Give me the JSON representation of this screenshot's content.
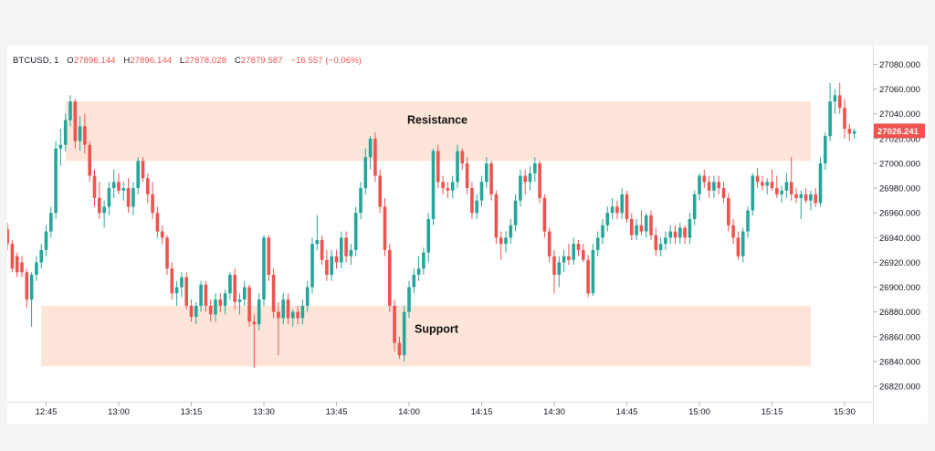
{
  "legend": {
    "symbol": "BTCUSD, 1",
    "open_label": "O",
    "open": "27896.144",
    "high_label": "H",
    "high": "27896.144",
    "low_label": "L",
    "low": "27878.028",
    "close_label": "C",
    "close": "27879.587",
    "change": "−16.557 (−0.06%)"
  },
  "colors": {
    "up": "#26a69a",
    "down": "#ef5350",
    "zone": "#fde5d9",
    "price_tag": "#ef5350"
  },
  "chart_data": {
    "type": "candlestick",
    "title": "",
    "xlabel": "",
    "ylabel": "",
    "ylim": [
      26810,
      27090
    ],
    "xlim": [
      "12:37",
      "15:40"
    ],
    "y_ticks": [
      "27080.000",
      "27060.000",
      "27040.000",
      "27020.000",
      "27000.000",
      "26980.000",
      "26960.000",
      "26940.000",
      "26920.000",
      "26900.000",
      "26880.000",
      "26860.000",
      "26840.000",
      "26820.000"
    ],
    "x_ticks": [
      "12:45",
      "13:00",
      "13:15",
      "13:30",
      "13:45",
      "14:00",
      "14:15",
      "14:30",
      "14:45",
      "15:00",
      "15:15",
      "15:30"
    ],
    "current_price": "27026.241",
    "grid": false,
    "zones": [
      {
        "name": "Resistance",
        "from": 27002,
        "to": 27050,
        "start": "12:49",
        "end": "15:23"
      },
      {
        "name": "Support",
        "from": 26836,
        "to": 26885,
        "start": "12:44",
        "end": "15:23"
      }
    ],
    "candles_start": "12:37",
    "candles": [
      {
        "o": 26947,
        "h": 26952,
        "l": 26930,
        "c": 26935
      },
      {
        "o": 26935,
        "h": 26938,
        "l": 26912,
        "c": 26915
      },
      {
        "o": 26925,
        "h": 26928,
        "l": 26908,
        "c": 26912
      },
      {
        "o": 26920,
        "h": 26925,
        "l": 26908,
        "c": 26912
      },
      {
        "o": 26912,
        "h": 26915,
        "l": 26883,
        "c": 26890
      },
      {
        "o": 26890,
        "h": 26912,
        "l": 26868,
        "c": 26910
      },
      {
        "o": 26910,
        "h": 26925,
        "l": 26905,
        "c": 26920
      },
      {
        "o": 26920,
        "h": 26935,
        "l": 26915,
        "c": 26930
      },
      {
        "o": 26930,
        "h": 26950,
        "l": 26925,
        "c": 26945
      },
      {
        "o": 26945,
        "h": 26965,
        "l": 26940,
        "c": 26960
      },
      {
        "o": 26960,
        "h": 27018,
        "l": 26955,
        "c": 27012
      },
      {
        "o": 27012,
        "h": 27028,
        "l": 26998,
        "c": 27015
      },
      {
        "o": 27015,
        "h": 27040,
        "l": 27010,
        "c": 27035
      },
      {
        "o": 27035,
        "h": 27055,
        "l": 27030,
        "c": 27050
      },
      {
        "o": 27050,
        "h": 27052,
        "l": 27012,
        "c": 27018
      },
      {
        "o": 27018,
        "h": 27038,
        "l": 27010,
        "c": 27030
      },
      {
        "o": 27030,
        "h": 27040,
        "l": 27008,
        "c": 27015
      },
      {
        "o": 27015,
        "h": 27018,
        "l": 26985,
        "c": 26990
      },
      {
        "o": 26990,
        "h": 26995,
        "l": 26965,
        "c": 26972
      },
      {
        "o": 26972,
        "h": 26985,
        "l": 26955,
        "c": 26960
      },
      {
        "o": 26960,
        "h": 26970,
        "l": 26948,
        "c": 26965
      },
      {
        "o": 26965,
        "h": 26985,
        "l": 26958,
        "c": 26980
      },
      {
        "o": 26980,
        "h": 26995,
        "l": 26972,
        "c": 26985
      },
      {
        "o": 26985,
        "h": 26992,
        "l": 26975,
        "c": 26978
      },
      {
        "o": 26978,
        "h": 26985,
        "l": 26970,
        "c": 26980
      },
      {
        "o": 26980,
        "h": 26988,
        "l": 26960,
        "c": 26965
      },
      {
        "o": 26965,
        "h": 26985,
        "l": 26958,
        "c": 26980
      },
      {
        "o": 26980,
        "h": 27005,
        "l": 26975,
        "c": 27002
      },
      {
        "o": 27002,
        "h": 27005,
        "l": 26985,
        "c": 26988
      },
      {
        "o": 26988,
        "h": 26992,
        "l": 26968,
        "c": 26975
      },
      {
        "o": 26975,
        "h": 26985,
        "l": 26955,
        "c": 26960
      },
      {
        "o": 26960,
        "h": 26965,
        "l": 26940,
        "c": 26945
      },
      {
        "o": 26945,
        "h": 26950,
        "l": 26935,
        "c": 26940
      },
      {
        "o": 26940,
        "h": 26942,
        "l": 26910,
        "c": 26915
      },
      {
        "o": 26915,
        "h": 26920,
        "l": 26890,
        "c": 26895
      },
      {
        "o": 26895,
        "h": 26905,
        "l": 26885,
        "c": 26900
      },
      {
        "o": 26900,
        "h": 26912,
        "l": 26892,
        "c": 26908
      },
      {
        "o": 26908,
        "h": 26912,
        "l": 26882,
        "c": 26885
      },
      {
        "o": 26885,
        "h": 26890,
        "l": 26872,
        "c": 26876
      },
      {
        "o": 26876,
        "h": 26888,
        "l": 26870,
        "c": 26885
      },
      {
        "o": 26885,
        "h": 26905,
        "l": 26880,
        "c": 26902
      },
      {
        "o": 26902,
        "h": 26905,
        "l": 26880,
        "c": 26885
      },
      {
        "o": 26885,
        "h": 26890,
        "l": 26872,
        "c": 26878
      },
      {
        "o": 26878,
        "h": 26895,
        "l": 26872,
        "c": 26890
      },
      {
        "o": 26890,
        "h": 26895,
        "l": 26880,
        "c": 26885
      },
      {
        "o": 26885,
        "h": 26898,
        "l": 26878,
        "c": 26895
      },
      {
        "o": 26895,
        "h": 26912,
        "l": 26890,
        "c": 26910
      },
      {
        "o": 26910,
        "h": 26915,
        "l": 26882,
        "c": 26888
      },
      {
        "o": 26888,
        "h": 26895,
        "l": 26878,
        "c": 26890
      },
      {
        "o": 26890,
        "h": 26905,
        "l": 26885,
        "c": 26900
      },
      {
        "o": 26900,
        "h": 26902,
        "l": 26868,
        "c": 26872
      },
      {
        "o": 26872,
        "h": 26878,
        "l": 26835,
        "c": 26870
      },
      {
        "o": 26870,
        "h": 26895,
        "l": 26865,
        "c": 26890
      },
      {
        "o": 26890,
        "h": 26942,
        "l": 26885,
        "c": 26940
      },
      {
        "o": 26940,
        "h": 26942,
        "l": 26905,
        "c": 26910
      },
      {
        "o": 26910,
        "h": 26915,
        "l": 26875,
        "c": 26880
      },
      {
        "o": 26880,
        "h": 26888,
        "l": 26845,
        "c": 26875
      },
      {
        "o": 26875,
        "h": 26895,
        "l": 26870,
        "c": 26890
      },
      {
        "o": 26890,
        "h": 26895,
        "l": 26870,
        "c": 26875
      },
      {
        "o": 26875,
        "h": 26882,
        "l": 26868,
        "c": 26880
      },
      {
        "o": 26880,
        "h": 26885,
        "l": 26870,
        "c": 26875
      },
      {
        "o": 26875,
        "h": 26890,
        "l": 26870,
        "c": 26885
      },
      {
        "o": 26885,
        "h": 26905,
        "l": 26880,
        "c": 26900
      },
      {
        "o": 26900,
        "h": 26940,
        "l": 26895,
        "c": 26935
      },
      {
        "o": 26935,
        "h": 26958,
        "l": 26930,
        "c": 26938
      },
      {
        "o": 26938,
        "h": 26942,
        "l": 26918,
        "c": 26922
      },
      {
        "o": 26922,
        "h": 26930,
        "l": 26905,
        "c": 26910
      },
      {
        "o": 26910,
        "h": 26930,
        "l": 26905,
        "c": 26925
      },
      {
        "o": 26925,
        "h": 26930,
        "l": 26915,
        "c": 26920
      },
      {
        "o": 26920,
        "h": 26945,
        "l": 26915,
        "c": 26940
      },
      {
        "o": 26940,
        "h": 26945,
        "l": 26920,
        "c": 26925
      },
      {
        "o": 26925,
        "h": 26935,
        "l": 26918,
        "c": 26930
      },
      {
        "o": 26930,
        "h": 26965,
        "l": 26925,
        "c": 26960
      },
      {
        "o": 26960,
        "h": 26985,
        "l": 26955,
        "c": 26980
      },
      {
        "o": 26980,
        "h": 27012,
        "l": 26975,
        "c": 27005
      },
      {
        "o": 27005,
        "h": 27022,
        "l": 26995,
        "c": 27020
      },
      {
        "o": 27020,
        "h": 27025,
        "l": 26985,
        "c": 26990
      },
      {
        "o": 26990,
        "h": 26995,
        "l": 26960,
        "c": 26965
      },
      {
        "o": 26965,
        "h": 26972,
        "l": 26925,
        "c": 26930
      },
      {
        "o": 26930,
        "h": 26935,
        "l": 26880,
        "c": 26885
      },
      {
        "o": 26885,
        "h": 26890,
        "l": 26848,
        "c": 26855
      },
      {
        "o": 26855,
        "h": 26860,
        "l": 26842,
        "c": 26845
      },
      {
        "o": 26845,
        "h": 26885,
        "l": 26840,
        "c": 26880
      },
      {
        "o": 26880,
        "h": 26905,
        "l": 26875,
        "c": 26900
      },
      {
        "o": 26900,
        "h": 26915,
        "l": 26895,
        "c": 26910
      },
      {
        "o": 26910,
        "h": 26925,
        "l": 26905,
        "c": 26915
      },
      {
        "o": 26915,
        "h": 26932,
        "l": 26910,
        "c": 26928
      },
      {
        "o": 26928,
        "h": 26960,
        "l": 26920,
        "c": 26955
      },
      {
        "o": 26955,
        "h": 27012,
        "l": 26950,
        "c": 27010
      },
      {
        "o": 27010,
        "h": 27015,
        "l": 26980,
        "c": 26985
      },
      {
        "o": 26985,
        "h": 26990,
        "l": 26975,
        "c": 26980
      },
      {
        "o": 26980,
        "h": 26985,
        "l": 26972,
        "c": 26978
      },
      {
        "o": 26978,
        "h": 26990,
        "l": 26972,
        "c": 26985
      },
      {
        "o": 26985,
        "h": 27015,
        "l": 26980,
        "c": 27010
      },
      {
        "o": 27010,
        "h": 27012,
        "l": 26995,
        "c": 27000
      },
      {
        "o": 27000,
        "h": 27005,
        "l": 26975,
        "c": 26980
      },
      {
        "o": 26980,
        "h": 26985,
        "l": 26955,
        "c": 26960
      },
      {
        "o": 26960,
        "h": 26975,
        "l": 26955,
        "c": 26970
      },
      {
        "o": 26970,
        "h": 26990,
        "l": 26965,
        "c": 26985
      },
      {
        "o": 26985,
        "h": 27005,
        "l": 26980,
        "c": 27000
      },
      {
        "o": 27000,
        "h": 27002,
        "l": 26970,
        "c": 26975
      },
      {
        "o": 26975,
        "h": 26978,
        "l": 26935,
        "c": 26940
      },
      {
        "o": 26940,
        "h": 26945,
        "l": 26922,
        "c": 26935
      },
      {
        "o": 26935,
        "h": 26945,
        "l": 26928,
        "c": 26940
      },
      {
        "o": 26940,
        "h": 26955,
        "l": 26935,
        "c": 26950
      },
      {
        "o": 26950,
        "h": 26975,
        "l": 26945,
        "c": 26970
      },
      {
        "o": 26970,
        "h": 26995,
        "l": 26965,
        "c": 26990
      },
      {
        "o": 26990,
        "h": 26995,
        "l": 26975,
        "c": 26985
      },
      {
        "o": 26985,
        "h": 26998,
        "l": 26978,
        "c": 26992
      },
      {
        "o": 26992,
        "h": 27005,
        "l": 26985,
        "c": 27000
      },
      {
        "o": 27000,
        "h": 27002,
        "l": 26968,
        "c": 26972
      },
      {
        "o": 26972,
        "h": 26975,
        "l": 26940,
        "c": 26945
      },
      {
        "o": 26945,
        "h": 26948,
        "l": 26920,
        "c": 26925
      },
      {
        "o": 26925,
        "h": 26930,
        "l": 26895,
        "c": 26910
      },
      {
        "o": 26910,
        "h": 26925,
        "l": 26900,
        "c": 26920
      },
      {
        "o": 26920,
        "h": 26930,
        "l": 26912,
        "c": 26925
      },
      {
        "o": 26925,
        "h": 26935,
        "l": 26918,
        "c": 26922
      },
      {
        "o": 26922,
        "h": 26940,
        "l": 26918,
        "c": 26935
      },
      {
        "o": 26935,
        "h": 26938,
        "l": 26925,
        "c": 26930
      },
      {
        "o": 26930,
        "h": 26935,
        "l": 26920,
        "c": 26922
      },
      {
        "o": 26922,
        "h": 26926,
        "l": 26892,
        "c": 26895
      },
      {
        "o": 26895,
        "h": 26935,
        "l": 26893,
        "c": 26930
      },
      {
        "o": 26930,
        "h": 26945,
        "l": 26925,
        "c": 26940
      },
      {
        "o": 26940,
        "h": 26955,
        "l": 26935,
        "c": 26950
      },
      {
        "o": 26950,
        "h": 26965,
        "l": 26945,
        "c": 26960
      },
      {
        "o": 26960,
        "h": 26972,
        "l": 26955,
        "c": 26965
      },
      {
        "o": 26965,
        "h": 26970,
        "l": 26955,
        "c": 26960
      },
      {
        "o": 26960,
        "h": 26980,
        "l": 26955,
        "c": 26975
      },
      {
        "o": 26975,
        "h": 26978,
        "l": 26952,
        "c": 26955
      },
      {
        "o": 26955,
        "h": 26960,
        "l": 26938,
        "c": 26942
      },
      {
        "o": 26942,
        "h": 26955,
        "l": 26938,
        "c": 26950
      },
      {
        "o": 26950,
        "h": 26962,
        "l": 26942,
        "c": 26945
      },
      {
        "o": 26945,
        "h": 26960,
        "l": 26940,
        "c": 26958
      },
      {
        "o": 26958,
        "h": 26962,
        "l": 26938,
        "c": 26942
      },
      {
        "o": 26942,
        "h": 26948,
        "l": 26925,
        "c": 26930
      },
      {
        "o": 26930,
        "h": 26940,
        "l": 26925,
        "c": 26935
      },
      {
        "o": 26935,
        "h": 26945,
        "l": 26930,
        "c": 26940
      },
      {
        "o": 26940,
        "h": 26950,
        "l": 26935,
        "c": 26945
      },
      {
        "o": 26945,
        "h": 26950,
        "l": 26935,
        "c": 26940
      },
      {
        "o": 26940,
        "h": 26952,
        "l": 26935,
        "c": 26948
      },
      {
        "o": 26948,
        "h": 26950,
        "l": 26935,
        "c": 26940
      },
      {
        "o": 26940,
        "h": 26960,
        "l": 26935,
        "c": 26955
      },
      {
        "o": 26955,
        "h": 26978,
        "l": 26950,
        "c": 26975
      },
      {
        "o": 26975,
        "h": 26992,
        "l": 26970,
        "c": 26990
      },
      {
        "o": 26990,
        "h": 26995,
        "l": 26980,
        "c": 26985
      },
      {
        "o": 26985,
        "h": 26990,
        "l": 26972,
        "c": 26978
      },
      {
        "o": 26978,
        "h": 26990,
        "l": 26972,
        "c": 26985
      },
      {
        "o": 26985,
        "h": 26990,
        "l": 26975,
        "c": 26980
      },
      {
        "o": 26980,
        "h": 26985,
        "l": 26968,
        "c": 26972
      },
      {
        "o": 26972,
        "h": 26976,
        "l": 26945,
        "c": 26950
      },
      {
        "o": 26950,
        "h": 26955,
        "l": 26935,
        "c": 26940
      },
      {
        "o": 26940,
        "h": 26945,
        "l": 26922,
        "c": 26925
      },
      {
        "o": 26925,
        "h": 26948,
        "l": 26920,
        "c": 26945
      },
      {
        "o": 26945,
        "h": 26965,
        "l": 26940,
        "c": 26962
      },
      {
        "o": 26962,
        "h": 26992,
        "l": 26958,
        "c": 26990
      },
      {
        "o": 26990,
        "h": 26996,
        "l": 26980,
        "c": 26985
      },
      {
        "o": 26985,
        "h": 26990,
        "l": 26978,
        "c": 26982
      },
      {
        "o": 26982,
        "h": 26988,
        "l": 26975,
        "c": 26985
      },
      {
        "o": 26985,
        "h": 26995,
        "l": 26978,
        "c": 26980
      },
      {
        "o": 26980,
        "h": 26990,
        "l": 26972,
        "c": 26975
      },
      {
        "o": 26975,
        "h": 26982,
        "l": 26968,
        "c": 26978
      },
      {
        "o": 26978,
        "h": 26992,
        "l": 26972,
        "c": 26985
      },
      {
        "o": 26985,
        "h": 27005,
        "l": 26970,
        "c": 26975
      },
      {
        "o": 26975,
        "h": 26980,
        "l": 26968,
        "c": 26972
      },
      {
        "o": 26972,
        "h": 26978,
        "l": 26955,
        "c": 26975
      },
      {
        "o": 26975,
        "h": 26980,
        "l": 26968,
        "c": 26970
      },
      {
        "o": 26970,
        "h": 26978,
        "l": 26962,
        "c": 26975
      },
      {
        "o": 26975,
        "h": 26980,
        "l": 26965,
        "c": 26968
      },
      {
        "o": 26968,
        "h": 27005,
        "l": 26965,
        "c": 27000
      },
      {
        "o": 27000,
        "h": 27025,
        "l": 26995,
        "c": 27022
      },
      {
        "o": 27022,
        "h": 27065,
        "l": 27018,
        "c": 27050
      },
      {
        "o": 27050,
        "h": 27060,
        "l": 27040,
        "c": 27055
      },
      {
        "o": 27055,
        "h": 27065,
        "l": 27040,
        "c": 27045
      },
      {
        "o": 27045,
        "h": 27052,
        "l": 27020,
        "c": 27028
      },
      {
        "o": 27028,
        "h": 27032,
        "l": 27018,
        "c": 27024
      },
      {
        "o": 27024,
        "h": 27028,
        "l": 27020,
        "c": 27026
      }
    ]
  }
}
